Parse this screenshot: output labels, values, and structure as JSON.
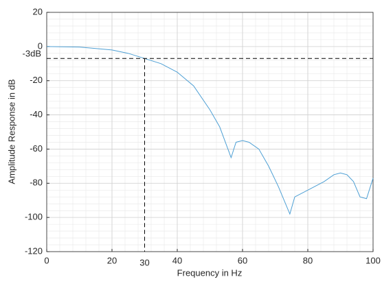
{
  "chart_data": {
    "type": "line",
    "xlabel": "Frequency in Hz",
    "ylabel": "Amplitude Response in dB",
    "x": [
      0,
      10,
      20,
      25,
      30,
      35,
      40,
      45,
      50,
      53,
      56.5,
      58,
      60,
      62,
      65,
      68,
      71,
      74.5,
      76,
      80,
      85,
      88,
      90,
      92,
      94,
      96,
      98,
      100
    ],
    "series": [
      {
        "color": "#4d9fd4",
        "values": [
          0,
          -0.3,
          -2,
          -4,
          -7,
          -10,
          -15,
          -23,
          -37,
          -47,
          -65,
          -56,
          -55,
          -56,
          -60,
          -70,
          -82,
          -98,
          -88,
          -84,
          -79,
          -75,
          -74,
          -75,
          -79,
          -88,
          -89,
          -77
        ]
      }
    ],
    "xlim": [
      0,
      100
    ],
    "xticks": [
      0,
      20,
      40,
      60,
      80,
      100
    ],
    "ylim": [
      -120,
      20
    ],
    "yticks": [
      -120,
      -100,
      -80,
      -60,
      -40,
      -20,
      0,
      20
    ],
    "grid": true,
    "minor_grid": true,
    "annotations": [
      {
        "text": "-3dB",
        "y": -7
      },
      {
        "text": "30",
        "x": 30
      }
    ]
  }
}
